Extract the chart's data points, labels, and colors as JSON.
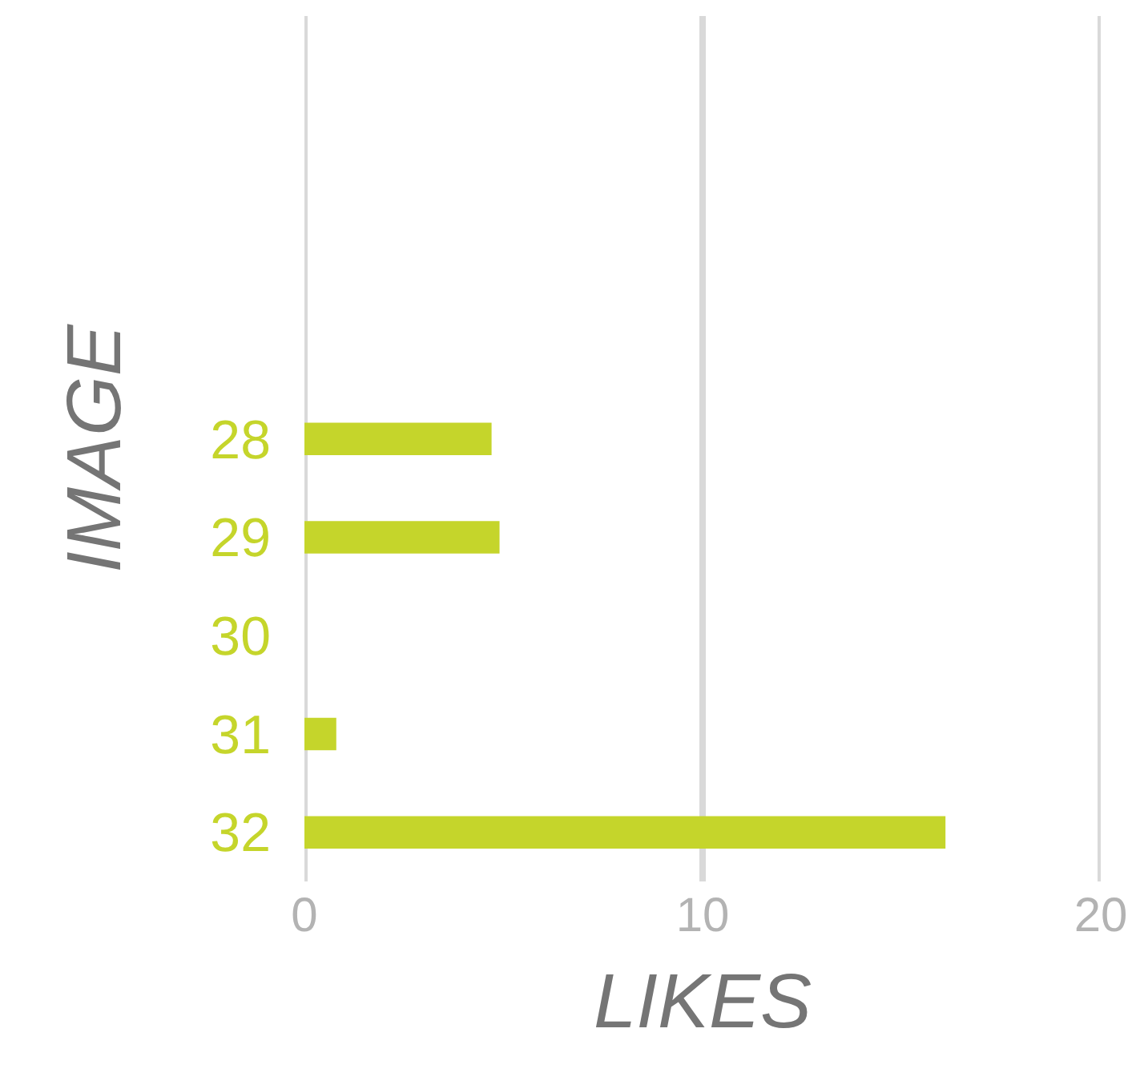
{
  "chart_data": {
    "type": "bar",
    "orientation": "horizontal",
    "xlabel": "LIKES",
    "ylabel": "IMAGE",
    "categories": [
      "28",
      "29",
      "30",
      "31",
      "32"
    ],
    "values": [
      4.7,
      4.9,
      0,
      0.8,
      16.1
    ],
    "color": "#c5d52b",
    "xlim": [
      0,
      20
    ],
    "xticks": [
      0,
      10,
      20
    ],
    "grid": "x"
  }
}
